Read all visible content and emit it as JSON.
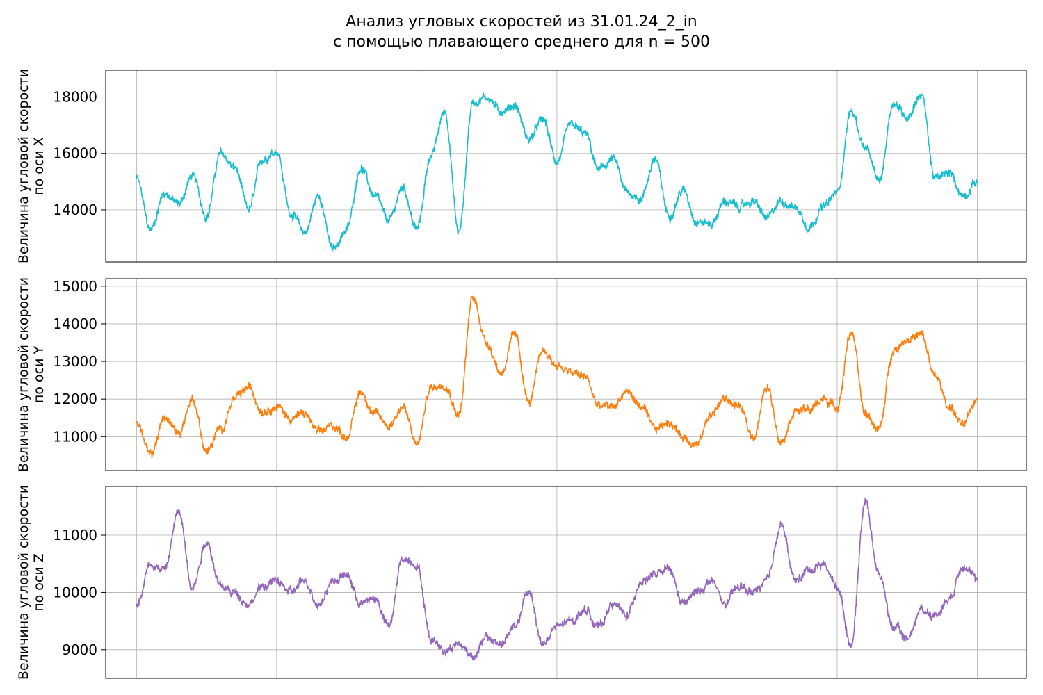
{
  "title": {
    "line1": "Анализ угловых скоростей из 31.01.24_2_in",
    "line2": "с помощью плавающего среднего для n = 500"
  },
  "chart_data": [
    {
      "type": "line",
      "panel": "x",
      "color": "#17becf",
      "ylabel_line1": "Величина угловой скорости",
      "ylabel_line2": "по оси X",
      "ylim": [
        12150,
        18950
      ],
      "yticks": [
        14000,
        16000,
        18000
      ],
      "ytick_labels": [
        "14000",
        "16000",
        "18000"
      ],
      "xlim": [
        -2.2,
        63.5
      ],
      "xgrid": [
        0,
        10,
        20,
        30,
        40,
        50,
        60
      ],
      "grid": true,
      "x": [
        0,
        1,
        2,
        3,
        4,
        5,
        6,
        7,
        8,
        9,
        10,
        11,
        12,
        13,
        14,
        15,
        16,
        17,
        18,
        19,
        20,
        21,
        22,
        23,
        24,
        25,
        26,
        27,
        28,
        29,
        30,
        31,
        32,
        33,
        34,
        35,
        36,
        37,
        38,
        39,
        40,
        41,
        42,
        43,
        44,
        45,
        46,
        47,
        48,
        49,
        50,
        51,
        52,
        53,
        54,
        55,
        56,
        57,
        58,
        59,
        60
      ],
      "values": [
        15100,
        13300,
        14600,
        14200,
        15200,
        13800,
        16000,
        15500,
        14000,
        15800,
        16100,
        13900,
        13200,
        14500,
        12600,
        13300,
        15500,
        14500,
        13600,
        14800,
        13300,
        15900,
        17500,
        13200,
        17800,
        18000,
        17500,
        17700,
        16500,
        17200,
        15700,
        17000,
        16700,
        15400,
        15800,
        14600,
        14400,
        15800,
        13800,
        14700,
        13600,
        13500,
        14300,
        14100,
        14300,
        13700,
        14300,
        14100,
        13400,
        14100,
        14600,
        17500,
        16200,
        15000,
        17800,
        17300,
        18100,
        15100,
        15300,
        14500,
        15000
      ]
    },
    {
      "type": "line",
      "panel": "y",
      "color": "#ff7f0e",
      "ylabel_line1": "Величина угловой скорости",
      "ylabel_line2": "по оси Y",
      "ylim": [
        10100,
        15200
      ],
      "yticks": [
        11000,
        12000,
        13000,
        14000,
        15000
      ],
      "ytick_labels": [
        "11000",
        "12000",
        "13000",
        "14000",
        "15000"
      ],
      "xlim": [
        -2.2,
        63.5
      ],
      "xgrid": [
        0,
        10,
        20,
        30,
        40,
        50,
        60
      ],
      "grid": true,
      "x": [
        0,
        1,
        2,
        3,
        4,
        5,
        6,
        7,
        8,
        9,
        10,
        11,
        12,
        13,
        14,
        15,
        16,
        17,
        18,
        19,
        20,
        21,
        22,
        23,
        24,
        25,
        26,
        27,
        28,
        29,
        30,
        31,
        32,
        33,
        34,
        35,
        36,
        37,
        38,
        39,
        40,
        41,
        42,
        43,
        44,
        45,
        46,
        47,
        48,
        49,
        50,
        51,
        52,
        53,
        54,
        55,
        56,
        57,
        58,
        59,
        60
      ],
      "values": [
        11400,
        10500,
        11500,
        11100,
        12000,
        10600,
        11200,
        12000,
        12300,
        11700,
        11800,
        11500,
        11600,
        11100,
        11300,
        11000,
        12200,
        11600,
        11300,
        11800,
        10800,
        12300,
        12400,
        11600,
        14700,
        13500,
        12700,
        13700,
        11900,
        13300,
        12900,
        12700,
        12600,
        11800,
        11800,
        12200,
        11800,
        11200,
        11400,
        11000,
        10800,
        11600,
        12000,
        11800,
        11000,
        12300,
        10900,
        11700,
        11700,
        12000,
        11800,
        13800,
        11600,
        11200,
        13300,
        13600,
        13700,
        12600,
        11800,
        11300,
        12000
      ]
    },
    {
      "type": "line",
      "panel": "z",
      "color": "#9467bd",
      "ylabel_line1": "Величина угловой скорости",
      "ylabel_line2": "по оси Z",
      "ylim": [
        8500,
        11850
      ],
      "yticks": [
        9000,
        10000,
        11000
      ],
      "ytick_labels": [
        "9000",
        "10000",
        "11000"
      ],
      "xlim": [
        -2.2,
        63.5
      ],
      "xgrid": [
        0,
        10,
        20,
        30,
        40,
        50,
        60
      ],
      "grid": true,
      "x": [
        0,
        1,
        2,
        3,
        4,
        5,
        6,
        7,
        8,
        9,
        10,
        11,
        12,
        13,
        14,
        15,
        16,
        17,
        18,
        19,
        20,
        21,
        22,
        23,
        24,
        25,
        26,
        27,
        28,
        29,
        30,
        31,
        32,
        33,
        34,
        35,
        36,
        37,
        38,
        39,
        40,
        41,
        42,
        43,
        44,
        45,
        46,
        47,
        48,
        49,
        50,
        51,
        52,
        53,
        54,
        55,
        56,
        57,
        58,
        59,
        60
      ],
      "values": [
        9800,
        10500,
        10400,
        11400,
        10100,
        10900,
        10100,
        10000,
        9800,
        10100,
        10200,
        10000,
        10200,
        9800,
        10200,
        10300,
        9800,
        9900,
        9400,
        10600,
        10500,
        9200,
        9000,
        9100,
        8900,
        9200,
        9100,
        9400,
        10000,
        9100,
        9400,
        9500,
        9700,
        9400,
        9800,
        9600,
        10200,
        10300,
        10400,
        9800,
        10000,
        10200,
        9800,
        10100,
        10000,
        10200,
        11200,
        10200,
        10400,
        10500,
        10100,
        9100,
        11600,
        10300,
        9400,
        9200,
        9700,
        9600,
        9900,
        10500,
        10200
      ]
    }
  ]
}
